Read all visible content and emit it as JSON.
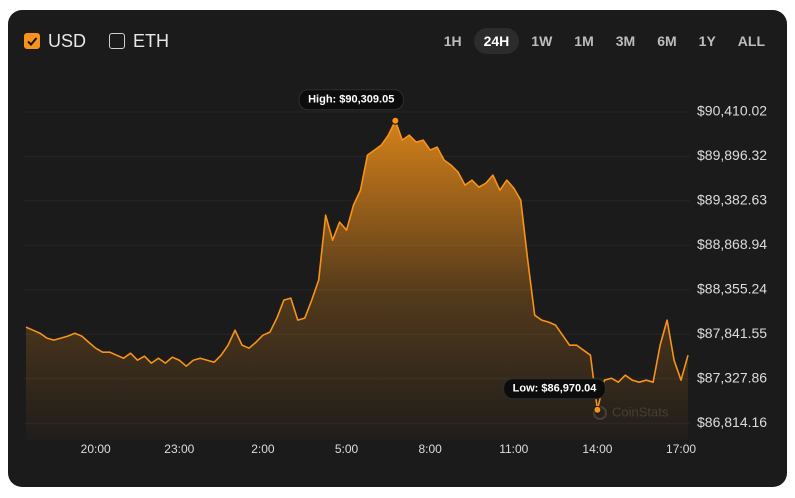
{
  "toolbar": {
    "currencies": [
      {
        "label": "USD",
        "checked": true
      },
      {
        "label": "ETH",
        "checked": false
      }
    ],
    "ranges": [
      "1H",
      "24H",
      "1W",
      "1M",
      "3M",
      "6M",
      "1Y",
      "ALL"
    ],
    "active_range": "24H"
  },
  "chart_data": {
    "type": "line",
    "color": "#f7931a",
    "grid": true,
    "watermark": "CoinStats",
    "high_label": "High: $90,309.05",
    "low_label": "Low: $86,970.04",
    "categories": [
      null,
      null,
      null,
      null,
      null,
      null,
      null,
      null,
      null,
      null,
      "20:00",
      null,
      null,
      null,
      null,
      null,
      null,
      null,
      null,
      null,
      null,
      null,
      "23:00",
      null,
      null,
      null,
      null,
      null,
      null,
      null,
      null,
      null,
      null,
      null,
      "2:00",
      null,
      null,
      null,
      null,
      null,
      null,
      null,
      null,
      null,
      null,
      null,
      "5:00",
      null,
      null,
      null,
      null,
      null,
      null,
      null,
      null,
      null,
      null,
      null,
      "8:00",
      null,
      null,
      null,
      null,
      null,
      null,
      null,
      null,
      null,
      null,
      null,
      "11:00",
      null,
      null,
      null,
      null,
      null,
      null,
      null,
      null,
      null,
      null,
      null,
      "14:00",
      null,
      null,
      null,
      null,
      null,
      null,
      null,
      null,
      null,
      null,
      null,
      "17:00",
      null
    ],
    "values": [
      87924,
      87889,
      87854,
      87797,
      87774,
      87797,
      87820,
      87854,
      87820,
      87750,
      87681,
      87635,
      87635,
      87600,
      87565,
      87623,
      87542,
      87589,
      87508,
      87565,
      87508,
      87577,
      87542,
      87473,
      87542,
      87565,
      87542,
      87519,
      87600,
      87716,
      87889,
      87716,
      87681,
      87750,
      87831,
      87866,
      88028,
      88236,
      88259,
      88005,
      88028,
      88236,
      88467,
      89218,
      88929,
      89138,
      89045,
      89334,
      89507,
      89912,
      89970,
      90028,
      90143,
      90309.05,
      90085,
      90143,
      90062,
      90085,
      89970,
      90005,
      89854,
      89796,
      89716,
      89565,
      89623,
      89542,
      89588,
      89681,
      89507,
      89623,
      89531,
      89392,
      88698,
      88062,
      88005,
      87982,
      87947,
      87831,
      87716,
      87716,
      87658,
      87600,
      86970.04,
      87311,
      87334,
      87288,
      87369,
      87311,
      87288,
      87311,
      87288,
      87716,
      88005,
      87542,
      87311,
      87600
    ],
    "ylim": [
      86620,
      90780
    ],
    "yticks": [
      {
        "value": 86814.16,
        "label": "$86,814.16"
      },
      {
        "value": 87327.86,
        "label": "$87,327.86"
      },
      {
        "value": 87841.55,
        "label": "$87,841.55"
      },
      {
        "value": 88355.24,
        "label": "$88,355.24"
      },
      {
        "value": 88868.94,
        "label": "$88,868.94"
      },
      {
        "value": 89382.63,
        "label": "$89,382.63"
      },
      {
        "value": 89896.32,
        "label": "$89,896.32"
      },
      {
        "value": 90410.02,
        "label": "$90,410.02"
      }
    ]
  }
}
